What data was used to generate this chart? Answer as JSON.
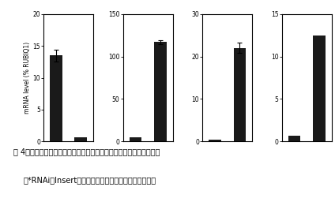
{
  "panels": [
    {
      "ylim": [
        0,
        20
      ],
      "yticks": [
        0,
        5,
        10,
        15,
        20
      ],
      "bar_values": [
        13.5,
        0.7
      ],
      "bar_errors": [
        0.9,
        0.0
      ],
      "bar_color": "#1a1a1a"
    },
    {
      "ylim": [
        0,
        150
      ],
      "yticks": [
        0,
        50,
        100,
        150
      ],
      "bar_values": [
        5,
        117
      ],
      "bar_errors": [
        0.0,
        2.0
      ],
      "bar_color": "#1a1a1a"
    },
    {
      "ylim": [
        0,
        30
      ],
      "yticks": [
        0,
        10,
        20,
        30
      ],
      "bar_values": [
        0.5,
        22
      ],
      "bar_errors": [
        0.0,
        1.2
      ],
      "bar_color": "#1a1a1a"
    },
    {
      "ylim": [
        0,
        15
      ],
      "yticks": [
        0,
        5,
        10,
        15
      ],
      "bar_values": [
        0.7,
        12.5
      ],
      "bar_errors": [
        0.0,
        0.0
      ],
      "bar_color": "#1a1a1a"
    }
  ],
  "ylabel": "mRNA level (% RUBIQ1)",
  "caption_line1": "围 4　イネの葉身における防御関連遣伝子の発現解析（播種後７週）",
  "caption_line2": "（*RNAiのInsertとは異なる領域のプライマーで測定）",
  "bar_width": 0.5,
  "background_color": "#ffffff",
  "text_color": "#000000",
  "caption_fontsize": 7.0,
  "ylabel_fontsize": 5.5,
  "tick_fontsize": 5.5
}
